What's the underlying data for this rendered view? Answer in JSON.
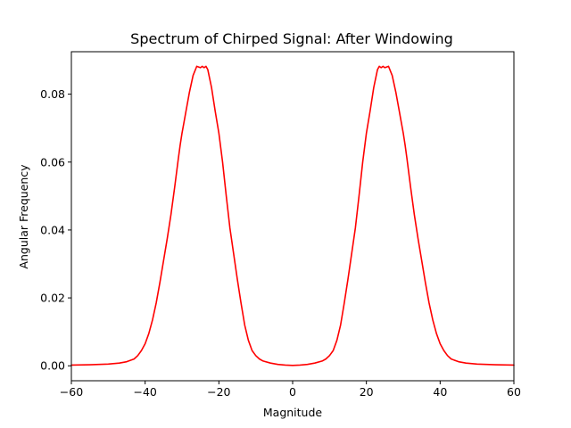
{
  "chart_data": {
    "type": "line",
    "title": "Spectrum of Chirped Signal: After Windowing",
    "xlabel": "Magnitude",
    "ylabel": "Angular Frequency",
    "xlim": [
      -60,
      60
    ],
    "ylim": [
      -0.0044,
      0.0925
    ],
    "xticks": [
      -60,
      -40,
      -20,
      0,
      20,
      40,
      60
    ],
    "xtick_labels": [
      "−60",
      "−40",
      "−20",
      "0",
      "20",
      "40",
      "60"
    ],
    "yticks": [
      0.0,
      0.02,
      0.04,
      0.06,
      0.08
    ],
    "ytick_labels": [
      "0.00",
      "0.02",
      "0.04",
      "0.06",
      "0.08"
    ],
    "grid": false,
    "series": [
      {
        "color": "#ff0000",
        "x": [
          -60,
          -55,
          -50,
          -47,
          -45,
          -43,
          -42,
          -41,
          -40,
          -39,
          -38,
          -37,
          -36,
          -35,
          -34,
          -33,
          -32,
          -31,
          -30.5,
          -30,
          -29.5,
          -29,
          -28.5,
          -28,
          -27.5,
          -27,
          -26,
          -25,
          -24.5,
          -24,
          -23.5,
          -23,
          -22,
          -21,
          -20,
          -19,
          -18,
          -17,
          -16,
          -15,
          -14,
          -13,
          -12,
          -11,
          -10,
          -9,
          -8,
          -6,
          -4,
          -2,
          0,
          2,
          4,
          6,
          8,
          9,
          10,
          11,
          12,
          13,
          14,
          15,
          16,
          17,
          18,
          19,
          20,
          21,
          22,
          23,
          23.5,
          24,
          24.5,
          25,
          26,
          27,
          27.5,
          28,
          28.5,
          29,
          29.5,
          30,
          30.5,
          31,
          32,
          33,
          34,
          35,
          36,
          37,
          38,
          39,
          40,
          41,
          42,
          43,
          45,
          47,
          50,
          55,
          60
        ],
        "y": [
          0.0002,
          0.0003,
          0.0005,
          0.0008,
          0.0012,
          0.002,
          0.003,
          0.0045,
          0.0065,
          0.0095,
          0.0135,
          0.0185,
          0.0245,
          0.031,
          0.0375,
          0.0445,
          0.0525,
          0.061,
          0.065,
          0.0685,
          0.0715,
          0.0745,
          0.0775,
          0.0805,
          0.083,
          0.0855,
          0.0882,
          0.0878,
          0.0882,
          0.0878,
          0.0882,
          0.0872,
          0.082,
          0.075,
          0.0685,
          0.06,
          0.05,
          0.0405,
          0.033,
          0.0255,
          0.0185,
          0.012,
          0.0075,
          0.0045,
          0.003,
          0.002,
          0.0014,
          0.0008,
          0.0004,
          0.0002,
          0.0001,
          0.0002,
          0.0004,
          0.0008,
          0.0014,
          0.002,
          0.003,
          0.0045,
          0.0075,
          0.012,
          0.0185,
          0.0255,
          0.033,
          0.0405,
          0.05,
          0.06,
          0.0685,
          0.075,
          0.082,
          0.0872,
          0.0882,
          0.0878,
          0.0882,
          0.0878,
          0.0882,
          0.0855,
          0.083,
          0.0805,
          0.0775,
          0.0745,
          0.0715,
          0.0685,
          0.065,
          0.061,
          0.0525,
          0.0445,
          0.0375,
          0.031,
          0.0245,
          0.0185,
          0.0135,
          0.0095,
          0.0065,
          0.0045,
          0.003,
          0.002,
          0.0012,
          0.0008,
          0.0005,
          0.0003,
          0.0002
        ]
      }
    ]
  }
}
